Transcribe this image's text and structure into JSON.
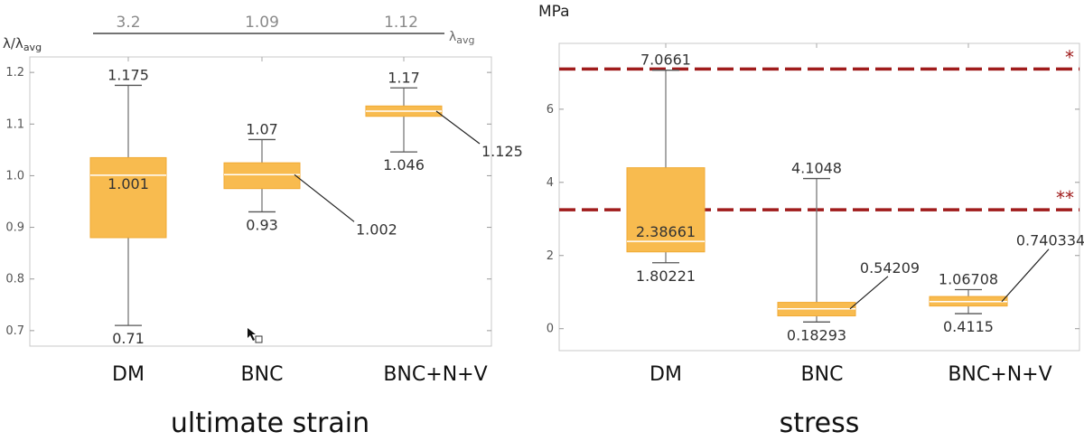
{
  "chart_data": [
    {
      "type": "box",
      "caption": "ultimate strain",
      "ylabel": "λ/λ",
      "ylabel_sub": "avg",
      "ylim": [
        0.67,
        1.23
      ],
      "yticks": [
        "0.7",
        "0.8",
        "0.9",
        "1.0",
        "1.1",
        "1.2"
      ],
      "top_axis_label": "λavg",
      "top_values": [
        "3.2",
        "1.09",
        "1.12"
      ],
      "categories": [
        "DM",
        "BNC",
        "BNC+N+V"
      ],
      "boxes": [
        {
          "min": 0.71,
          "q1": 0.88,
          "median": 1.001,
          "q3": 1.035,
          "max": 1.175,
          "labels": {
            "max": "1.175",
            "median": "1.001",
            "min": "0.71"
          }
        },
        {
          "min": 0.93,
          "q1": 0.975,
          "median": 1.002,
          "q3": 1.025,
          "max": 1.07,
          "labels": {
            "max": "1.07",
            "median": "1.002",
            "min": "0.93"
          }
        },
        {
          "min": 1.046,
          "q1": 1.115,
          "median": 1.125,
          "q3": 1.135,
          "max": 1.17,
          "labels": {
            "max": "1.17",
            "median": "1.125",
            "min": "1.046"
          }
        }
      ],
      "box_color": "#f8bb4f"
    },
    {
      "type": "box",
      "caption": "stress",
      "ylabel": "MPa",
      "ylim": [
        -0.6,
        7.8
      ],
      "yticks": [
        "0",
        "2",
        "4",
        "6"
      ],
      "categories": [
        "DM",
        "BNC",
        "BNC+N+V"
      ],
      "boxes": [
        {
          "min": 1.80221,
          "q1": 2.1,
          "median": 2.38661,
          "q3": 4.4,
          "max": 7.0661,
          "labels": {
            "max": "7.0661",
            "median": "2.38661",
            "min": "1.80221"
          }
        },
        {
          "min": 0.18293,
          "q1": 0.35,
          "median": 0.54209,
          "q3": 0.72,
          "max": 4.1048,
          "labels": {
            "max": "4.1048",
            "median": "0.54209",
            "min": "0.18293"
          }
        },
        {
          "min": 0.4115,
          "q1": 0.62,
          "median": 0.740334,
          "q3": 0.88,
          "max": 1.06708,
          "labels": {
            "max": "1.06708",
            "median": "0.740334",
            "min": "0.4115"
          }
        }
      ],
      "reference_lines": [
        {
          "value": 7.1,
          "label": "*"
        },
        {
          "value": 3.25,
          "label": "**"
        }
      ],
      "reference_color": "#a01c1c",
      "box_color": "#f8bb4f"
    }
  ]
}
